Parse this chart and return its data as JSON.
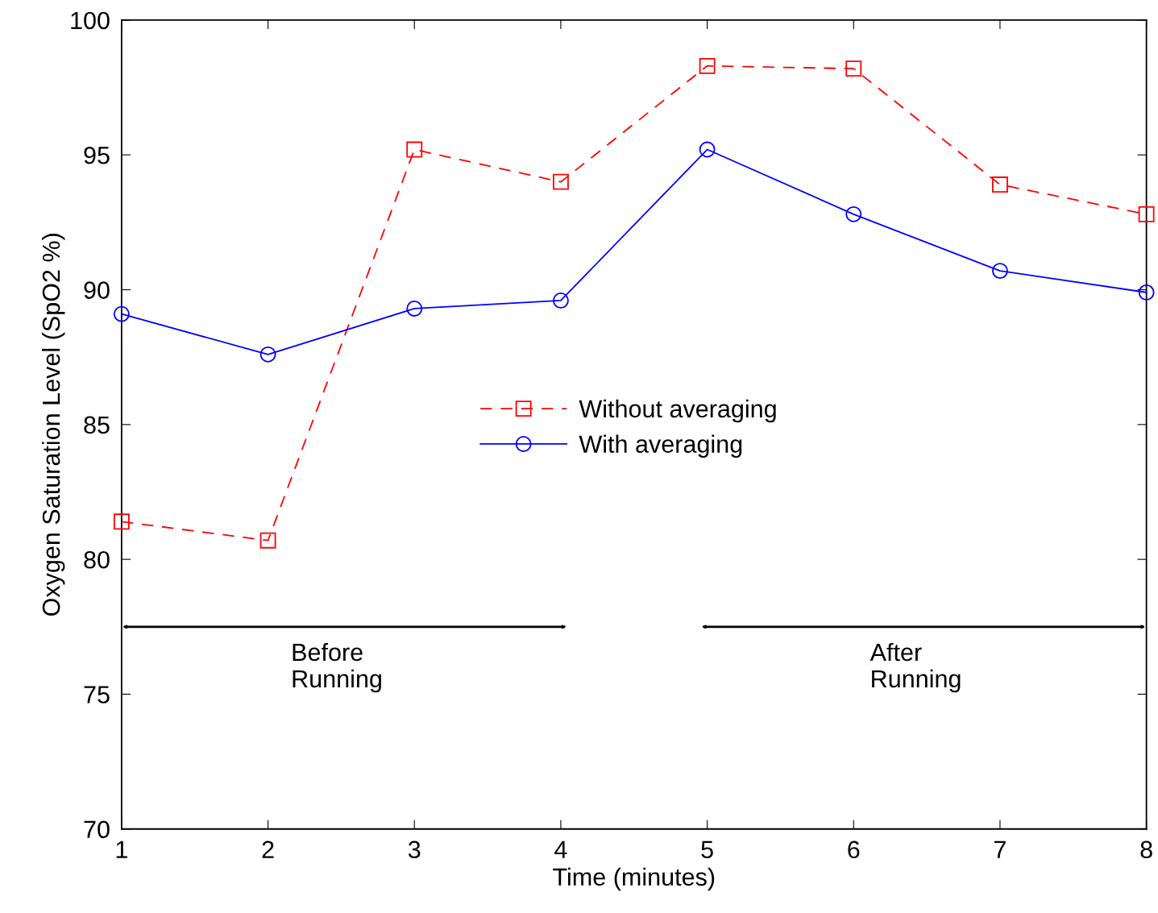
{
  "chart_data": {
    "type": "line",
    "xlabel": "Time (minutes)",
    "ylabel": "Oxygen Saturation Level (SpO2 %)",
    "x": [
      1,
      2,
      3,
      4,
      5,
      6,
      7,
      8
    ],
    "xlim": [
      1,
      8
    ],
    "xticks": [
      1,
      2,
      3,
      4,
      5,
      6,
      7,
      8
    ],
    "ylim": [
      70,
      100
    ],
    "yticks": [
      70,
      75,
      80,
      85,
      90,
      95,
      100
    ],
    "grid": false,
    "legend": "center",
    "series": [
      {
        "name": "Without averaging",
        "color": "#ff0000",
        "marker": "square",
        "line_style": "dashed",
        "values": [
          81.4,
          80.7,
          95.2,
          94.0,
          98.3,
          98.2,
          93.9,
          92.8
        ]
      },
      {
        "name": "With averaging",
        "color": "#0000ff",
        "marker": "circle",
        "line_style": "solid",
        "values": [
          89.1,
          87.6,
          89.3,
          89.6,
          95.2,
          92.8,
          90.7,
          89.9
        ]
      }
    ],
    "annotations": [
      "Before\nRunning",
      "After\nRunning"
    ]
  }
}
